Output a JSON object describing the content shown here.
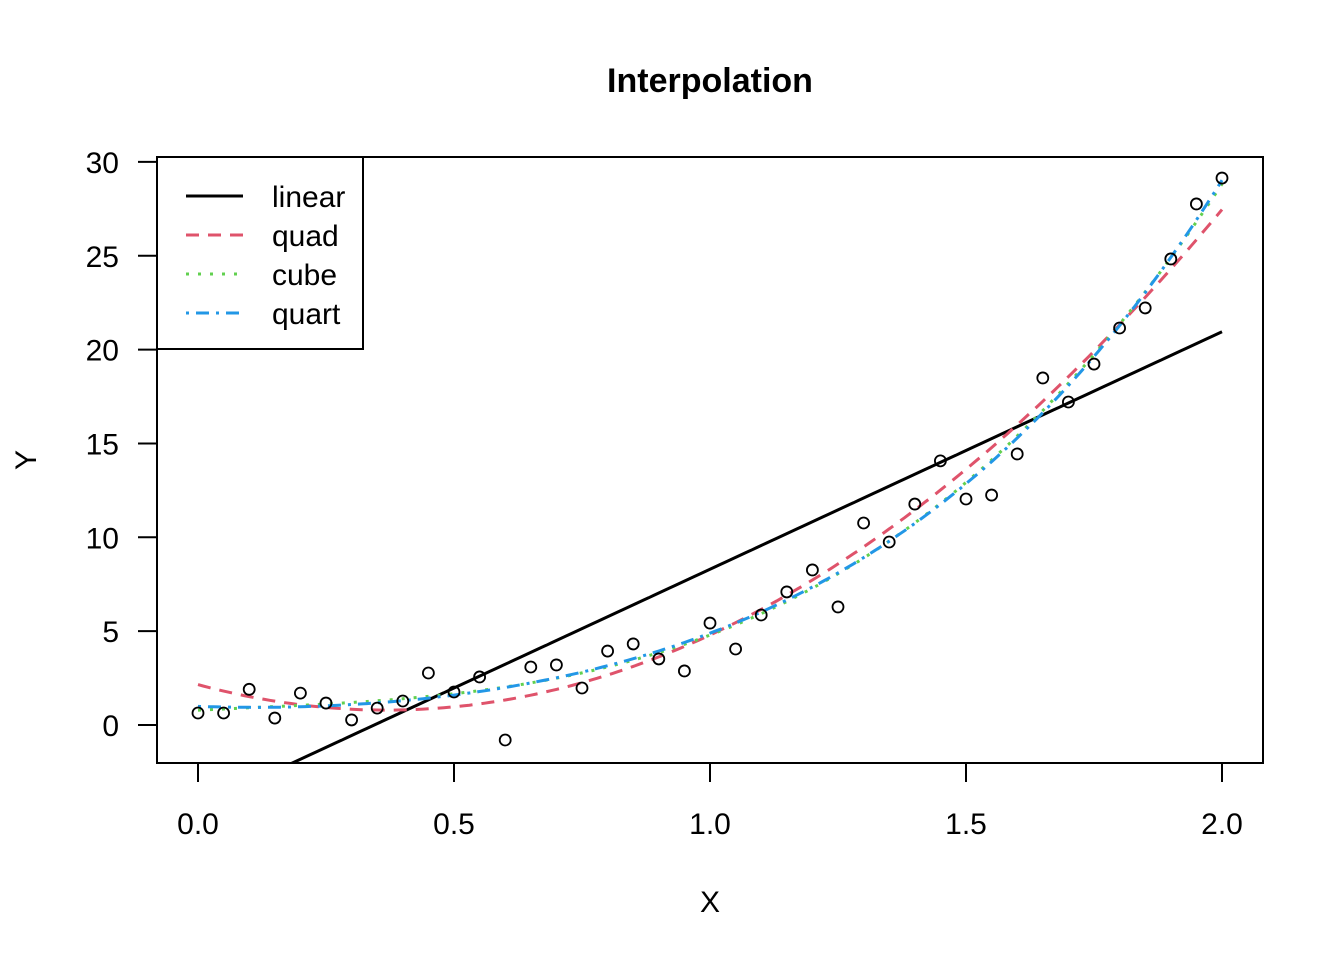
{
  "chart_data": {
    "type": "scatter",
    "title": "Interpolation",
    "xlabel": "X",
    "ylabel": "Y",
    "xlim": [
      -0.08,
      2.08
    ],
    "ylim": [
      -2,
      30
    ],
    "xticks": [
      0.0,
      0.5,
      1.0,
      1.5,
      2.0
    ],
    "xtick_labels": [
      "0.0",
      "0.5",
      "1.0",
      "1.5",
      "2.0"
    ],
    "yticks": [
      0,
      5,
      10,
      15,
      20,
      25,
      30
    ],
    "ytick_labels": [
      "0",
      "5",
      "10",
      "15",
      "20",
      "25",
      "30"
    ],
    "grid": false,
    "legend_position": "top-left",
    "points": {
      "x": [
        0.0,
        0.05,
        0.1,
        0.15,
        0.2,
        0.25,
        0.3,
        0.35,
        0.4,
        0.45,
        0.5,
        0.55,
        0.6,
        0.65,
        0.7,
        0.75,
        0.8,
        0.85,
        0.9,
        0.95,
        1.0,
        1.05,
        1.1,
        1.15,
        1.2,
        1.25,
        1.3,
        1.35,
        1.4,
        1.45,
        1.5,
        1.55,
        1.6,
        1.65,
        1.7,
        1.75,
        1.8,
        1.85,
        1.9,
        1.95,
        2.0
      ],
      "y": [
        0.64,
        0.64,
        1.9,
        0.37,
        1.7,
        1.17,
        0.27,
        0.9,
        1.28,
        2.77,
        1.76,
        2.56,
        -0.8,
        3.09,
        3.2,
        1.97,
        3.94,
        4.32,
        3.52,
        2.88,
        5.43,
        4.05,
        5.86,
        7.09,
        8.26,
        6.29,
        10.76,
        9.75,
        11.77,
        14.07,
        12.04,
        12.25,
        14.44,
        18.49,
        17.21,
        19.23,
        21.15,
        22.22,
        24.83,
        27.76,
        29.14
      ]
    },
    "series": [
      {
        "name": "linear",
        "degree": 1,
        "color": "#000000",
        "dash": "solid"
      },
      {
        "name": "quad",
        "degree": 2,
        "color": "#DF536B",
        "dash": "dashed"
      },
      {
        "name": "cube",
        "degree": 3,
        "color": "#61D04F",
        "dash": "dotted"
      },
      {
        "name": "quart",
        "degree": 4,
        "color": "#2297E6",
        "dash": "dotdash"
      }
    ]
  }
}
